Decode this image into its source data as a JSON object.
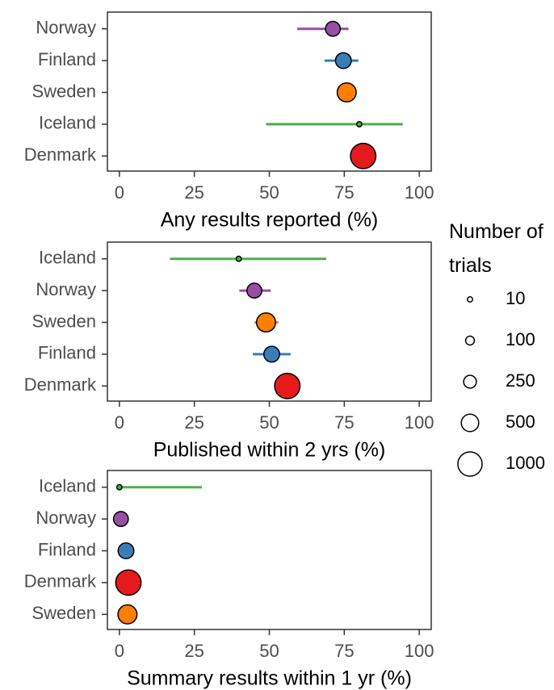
{
  "chart_data": [
    {
      "type": "dot",
      "xlabel": "Any results reported (%)",
      "categories": [
        "Norway",
        "Finland",
        "Sweden",
        "Iceland",
        "Denmark"
      ],
      "colors": [
        "#984ea3",
        "#377eb8",
        "#ff7f00",
        "#4daf4a",
        "#e41a1c"
      ],
      "values": [
        71.2,
        74.7,
        75.8,
        80,
        81.3
      ],
      "err_low": [
        59.3,
        68.4,
        73,
        48.9,
        79
      ],
      "err_high": [
        76.4,
        79.7,
        79,
        94.5,
        84
      ],
      "n": [
        350,
        400,
        600,
        10,
        1100
      ],
      "xlim": [
        -4,
        104
      ],
      "xticks": [
        0,
        25,
        50,
        75,
        100
      ]
    },
    {
      "type": "dot",
      "xlabel": "Published within 2 yrs (%)",
      "categories": [
        "Iceland",
        "Norway",
        "Sweden",
        "Finland",
        "Denmark"
      ],
      "colors": [
        "#4daf4a",
        "#984ea3",
        "#ff7f00",
        "#377eb8",
        "#e41a1c"
      ],
      "values": [
        39.8,
        45,
        48.9,
        50.8,
        56
      ],
      "err_low": [
        16.8,
        40,
        45,
        44.5,
        53
      ],
      "err_high": [
        69,
        50.5,
        53,
        57.1,
        59
      ],
      "n": [
        10,
        350,
        600,
        400,
        1100
      ],
      "xlim": [
        -4,
        104
      ],
      "xticks": [
        0,
        25,
        50,
        75,
        100
      ]
    },
    {
      "type": "dot",
      "xlabel": "Summary results within 1 yr (%)",
      "categories": [
        "Iceland",
        "Norway",
        "Finland",
        "Denmark",
        "Sweden"
      ],
      "colors": [
        "#4daf4a",
        "#984ea3",
        "#377eb8",
        "#e41a1c",
        "#ff7f00"
      ],
      "values": [
        0,
        0.5,
        2.2,
        3,
        2.7
      ],
      "err_low": [
        0,
        0,
        1,
        2,
        1.5
      ],
      "err_high": [
        27.5,
        2,
        3.5,
        4.5,
        4
      ],
      "n": [
        10,
        350,
        400,
        1100,
        600
      ],
      "xlim": [
        -4,
        104
      ],
      "xticks": [
        0,
        25,
        50,
        75,
        100
      ]
    }
  ],
  "size_legend": {
    "title": "Number of trials",
    "values": [
      10,
      100,
      250,
      500,
      1000
    ]
  }
}
